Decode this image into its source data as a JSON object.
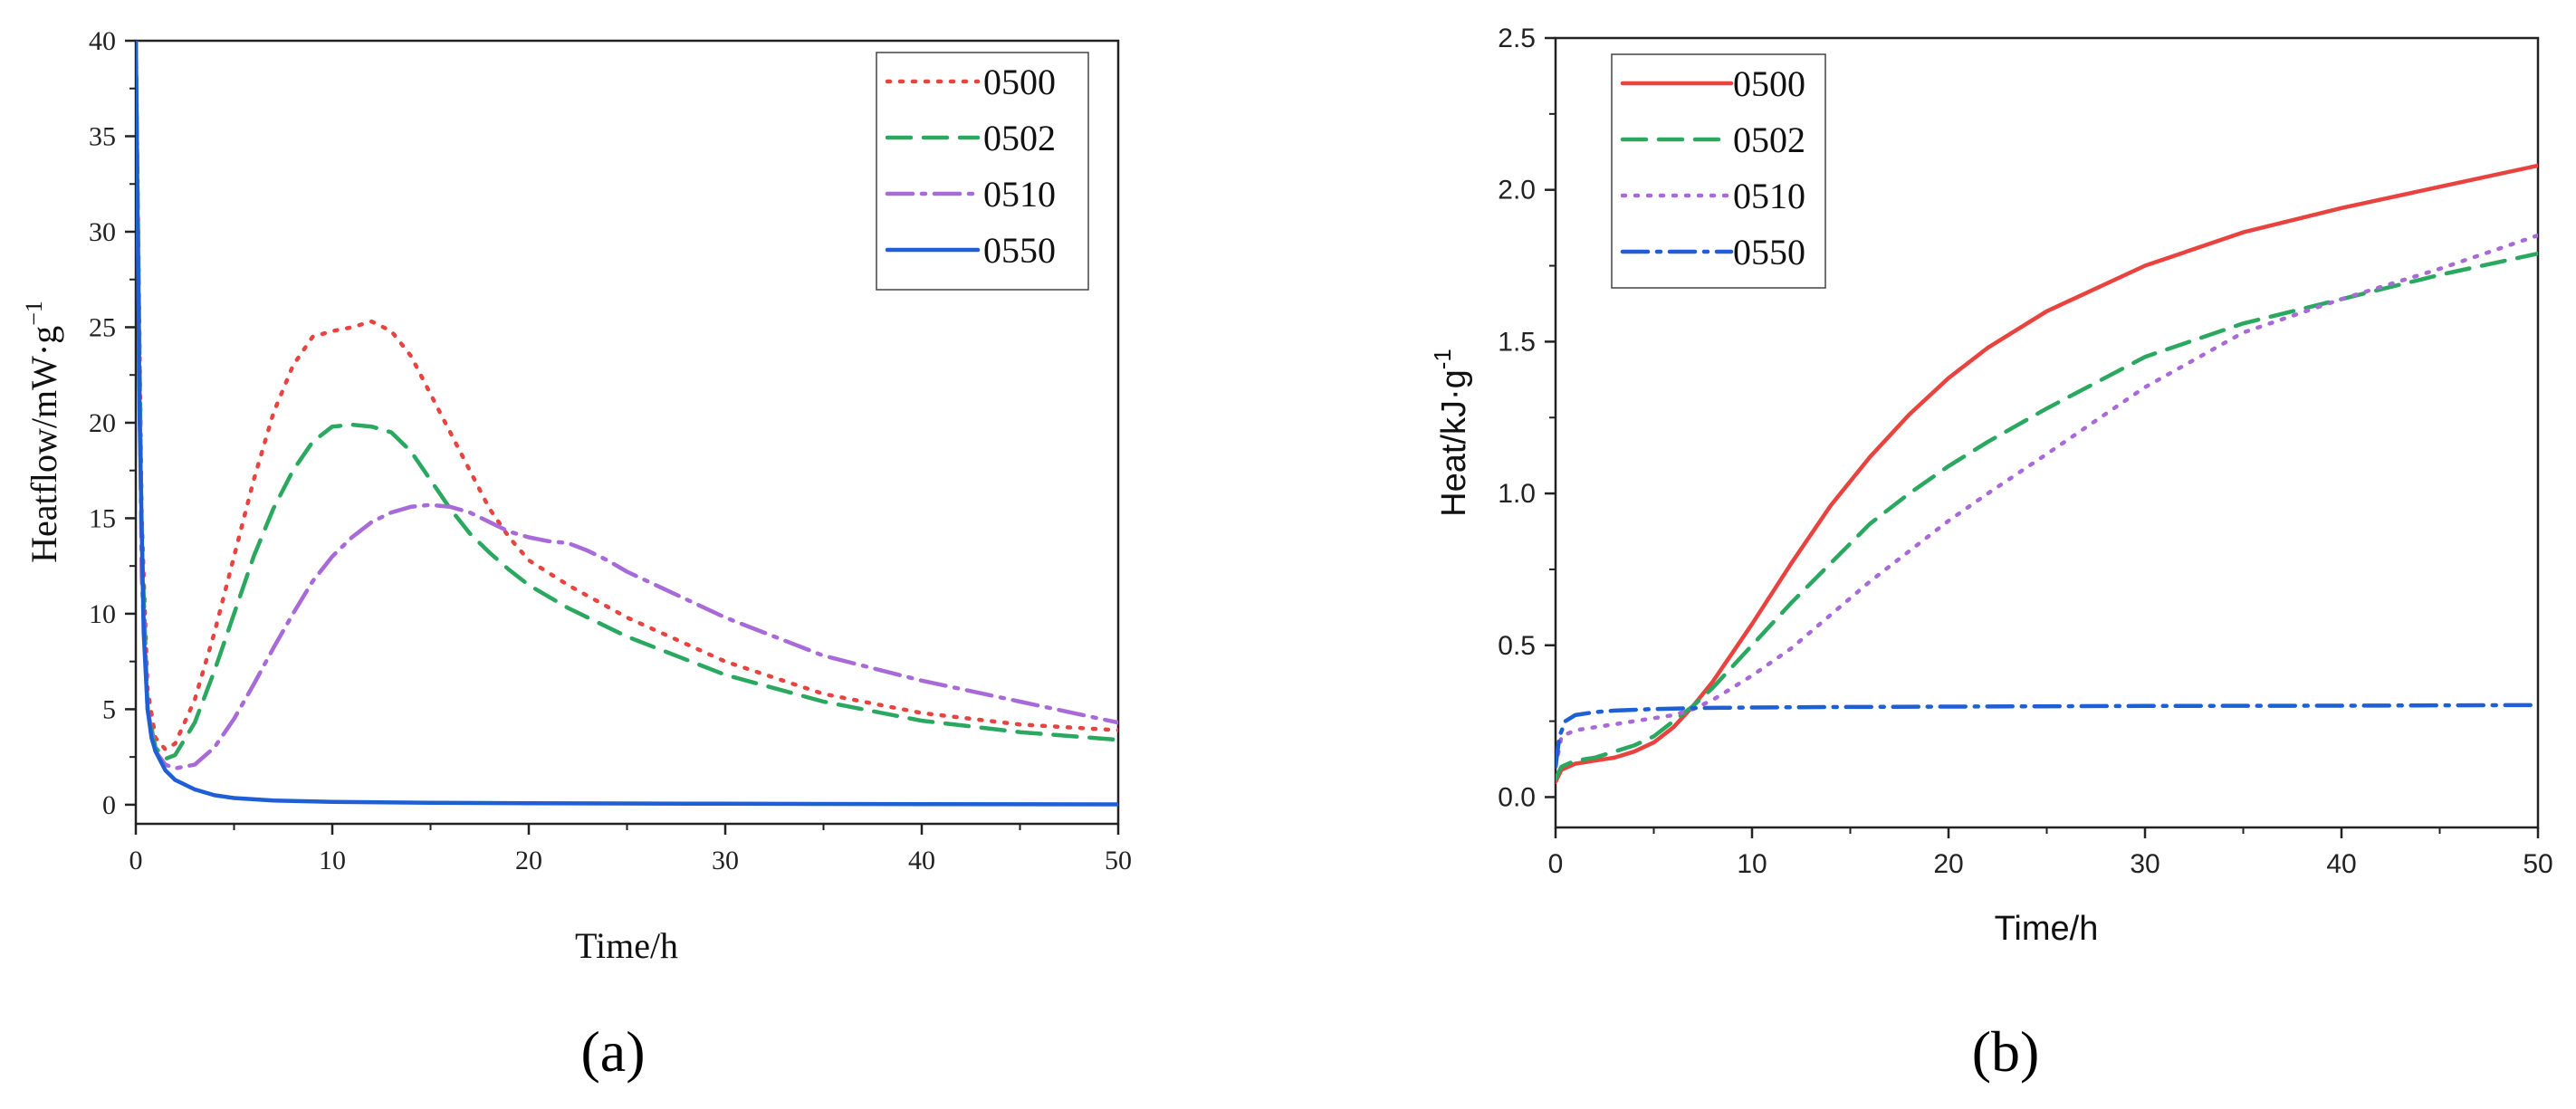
{
  "chart_data": [
    {
      "type": "line",
      "panel": "a",
      "panel_label": "(a)",
      "xlabel": "Time/h",
      "ylabel": "Heatflow/mW·g⁻¹",
      "ylabel_base": "Heatflow/mW·g",
      "ylabel_exp": "−1",
      "xlim": [
        0,
        50
      ],
      "ylim": [
        -1,
        40
      ],
      "xticks": [
        0,
        10,
        20,
        30,
        40,
        50
      ],
      "yticks": [
        0,
        5,
        10,
        15,
        20,
        25,
        30,
        35,
        40
      ],
      "legend_position": "top-right",
      "series": [
        {
          "name": "0500",
          "color": "#e8433f",
          "style": "dotted",
          "x": [
            0,
            0.3,
            0.6,
            1,
            1.5,
            2,
            3,
            4,
            5,
            6,
            7,
            8,
            9,
            10,
            11,
            12,
            13,
            14,
            15,
            16,
            17,
            18,
            19,
            20,
            22,
            25,
            30,
            35,
            40,
            45,
            50
          ],
          "y": [
            40,
            15,
            6,
            3.5,
            2.9,
            3.2,
            5.5,
            9,
            13,
            17,
            20.5,
            23,
            24.5,
            24.8,
            25,
            25.3,
            24.8,
            23.5,
            21.5,
            19.5,
            17.5,
            15.5,
            14,
            12.8,
            11.5,
            9.8,
            7.5,
            5.8,
            4.8,
            4.2,
            3.9
          ]
        },
        {
          "name": "0502",
          "color": "#2aa860",
          "style": "dashed",
          "x": [
            0,
            0.3,
            0.6,
            1,
            1.5,
            2,
            3,
            4,
            5,
            6,
            7,
            8,
            9,
            10,
            11,
            12,
            13,
            14,
            15,
            16,
            17,
            18,
            19,
            20,
            22,
            25,
            30,
            35,
            40,
            45,
            50
          ],
          "y": [
            40,
            14,
            5,
            3,
            2.4,
            2.6,
            4.3,
            7,
            10,
            13,
            15.5,
            17.5,
            19,
            19.8,
            19.9,
            19.8,
            19.5,
            18.5,
            17,
            15.5,
            14.2,
            13.2,
            12.3,
            11.5,
            10.3,
            8.8,
            6.8,
            5.4,
            4.4,
            3.8,
            3.4
          ]
        },
        {
          "name": "0510",
          "color": "#a86ad8",
          "style": "dashdot",
          "x": [
            0,
            0.3,
            0.6,
            1,
            1.5,
            2,
            3,
            4,
            5,
            6,
            7,
            8,
            9,
            10,
            11,
            12,
            13,
            14,
            15,
            16,
            17,
            18,
            19,
            20,
            21,
            22,
            23,
            24,
            25,
            30,
            35,
            40,
            45,
            50
          ],
          "y": [
            40,
            12,
            5,
            2.8,
            2.1,
            1.9,
            2.1,
            3,
            4.5,
            6.3,
            8.2,
            10,
            11.7,
            13,
            14,
            14.8,
            15.3,
            15.6,
            15.7,
            15.6,
            15.3,
            14.8,
            14.3,
            14,
            13.8,
            13.7,
            13.3,
            12.8,
            12.2,
            9.8,
            7.8,
            6.5,
            5.4,
            4.3
          ]
        },
        {
          "name": "0550",
          "color": "#1f5fd6",
          "style": "solid",
          "x": [
            0,
            0.2,
            0.4,
            0.6,
            0.8,
            1,
            1.5,
            2,
            3,
            4,
            5,
            7,
            10,
            15,
            20,
            30,
            40,
            50
          ],
          "y": [
            40,
            20,
            9,
            5,
            3.5,
            2.8,
            1.8,
            1.3,
            0.8,
            0.5,
            0.35,
            0.22,
            0.15,
            0.1,
            0.08,
            0.05,
            0.03,
            0.02
          ]
        }
      ]
    },
    {
      "type": "line",
      "panel": "b",
      "panel_label": "(b)",
      "xlabel": "Time/h",
      "ylabel": "Heat/kJ·g⁻¹",
      "ylabel_base": "Heat/kJ·g",
      "ylabel_exp": "-1",
      "xlim": [
        0,
        50
      ],
      "ylim": [
        -0.1,
        2.5
      ],
      "xticks": [
        0,
        10,
        20,
        30,
        40,
        50
      ],
      "yticks": [
        0.0,
        0.5,
        1.0,
        1.5,
        2.0,
        2.5
      ],
      "ytick_labels": [
        "0.0",
        "0.5",
        "1.0",
        "1.5",
        "2.0",
        "2.5"
      ],
      "legend_position": "top-left",
      "series": [
        {
          "name": "0500",
          "color": "#e8433f",
          "style": "solid",
          "x": [
            0,
            0.3,
            1,
            2,
            3,
            4,
            5,
            6,
            7,
            8,
            10,
            12,
            14,
            16,
            18,
            20,
            22,
            25,
            30,
            35,
            40,
            45,
            50
          ],
          "y": [
            0.05,
            0.09,
            0.11,
            0.12,
            0.13,
            0.15,
            0.18,
            0.23,
            0.3,
            0.38,
            0.57,
            0.77,
            0.96,
            1.12,
            1.26,
            1.38,
            1.48,
            1.6,
            1.75,
            1.86,
            1.94,
            2.01,
            2.08
          ]
        },
        {
          "name": "0502",
          "color": "#2aa860",
          "style": "dashed",
          "x": [
            0,
            0.3,
            1,
            2,
            3,
            4,
            5,
            6,
            7,
            8,
            10,
            12,
            14,
            16,
            18,
            20,
            22,
            25,
            30,
            35,
            40,
            45,
            50
          ],
          "y": [
            0.06,
            0.1,
            0.12,
            0.13,
            0.15,
            0.17,
            0.2,
            0.25,
            0.3,
            0.36,
            0.5,
            0.64,
            0.77,
            0.9,
            1.0,
            1.09,
            1.17,
            1.28,
            1.45,
            1.56,
            1.64,
            1.72,
            1.79
          ]
        },
        {
          "name": "0510",
          "color": "#a86ad8",
          "style": "dotted",
          "x": [
            0,
            0.3,
            1,
            2,
            3,
            4,
            5,
            6,
            7,
            8,
            10,
            12,
            14,
            16,
            18,
            20,
            22,
            25,
            30,
            35,
            40,
            45,
            50
          ],
          "y": [
            0.1,
            0.2,
            0.22,
            0.23,
            0.24,
            0.25,
            0.26,
            0.27,
            0.29,
            0.32,
            0.4,
            0.49,
            0.6,
            0.71,
            0.81,
            0.91,
            1.0,
            1.13,
            1.35,
            1.53,
            1.64,
            1.74,
            1.85
          ]
        },
        {
          "name": "0550",
          "color": "#1f5fd6",
          "style": "dashdot",
          "x": [
            0,
            0.2,
            0.5,
            1,
            2,
            3,
            5,
            7,
            10,
            15,
            20,
            30,
            40,
            50
          ],
          "y": [
            0.1,
            0.2,
            0.25,
            0.27,
            0.28,
            0.285,
            0.29,
            0.293,
            0.295,
            0.297,
            0.298,
            0.3,
            0.301,
            0.303
          ]
        }
      ]
    }
  ]
}
